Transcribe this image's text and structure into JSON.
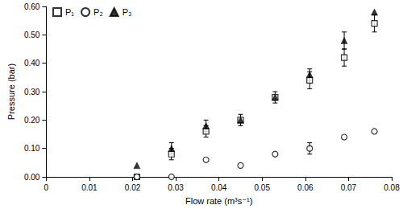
{
  "chart_data": {
    "type": "scatter",
    "x_label": "Flow rate (m³s⁻¹)",
    "y_label": "Pressure (bar)",
    "xlim": [
      0,
      0.08
    ],
    "xticks": [
      0,
      0.01,
      0.02,
      0.03,
      0.04,
      0.05,
      0.06,
      0.07,
      0.08
    ],
    "ylim": [
      0,
      0.6
    ],
    "yticks": [
      {
        "value": 0,
        "label": "0.00"
      },
      {
        "value": 0.1,
        "label": "0.10"
      },
      {
        "value": 0.2,
        "label": "0.20"
      },
      {
        "value": 0.3,
        "label": "0.30"
      },
      {
        "value": 0.4,
        "label": "0.40"
      },
      {
        "value": 0.5,
        "label": "0.50"
      },
      {
        "value": 0.6,
        "label": "0.60"
      }
    ],
    "grid": false,
    "legend": "upper left",
    "series": [
      {
        "name": "P₁",
        "color": "#000000",
        "marker": "square_open",
        "x": [
          0.021,
          0.029,
          0.037,
          0.045,
          0.053,
          0.061,
          0.069,
          0.076
        ],
        "values": [
          0.0,
          0.08,
          0.16,
          0.2,
          0.28,
          0.34,
          0.42,
          0.54
        ],
        "errors": [
          0,
          0.02,
          0.02,
          0.02,
          0.02,
          0.03,
          0.03,
          0.03
        ]
      },
      {
        "name": "P₂",
        "color": "#000000",
        "marker": "circle_open",
        "x": [
          0.021,
          0.029,
          0.037,
          0.045,
          0.053,
          0.061,
          0.069,
          0.076
        ],
        "values": [
          0.0,
          0.0,
          0.06,
          0.04,
          0.08,
          0.1,
          0.14,
          0.16
        ],
        "errors": [
          0,
          0,
          0,
          0,
          0,
          0.02,
          0,
          0
        ]
      },
      {
        "name": "P₃",
        "color": "#000000",
        "marker": "triangle",
        "x": [
          0.021,
          0.029,
          0.037,
          0.045,
          0.053,
          0.061,
          0.069,
          0.076
        ],
        "values": [
          0.04,
          0.1,
          0.18,
          0.2,
          0.28,
          0.36,
          0.48,
          0.58
        ],
        "errors": [
          0,
          0.02,
          0.02,
          0,
          0,
          0.02,
          0.03,
          0
        ]
      }
    ]
  }
}
